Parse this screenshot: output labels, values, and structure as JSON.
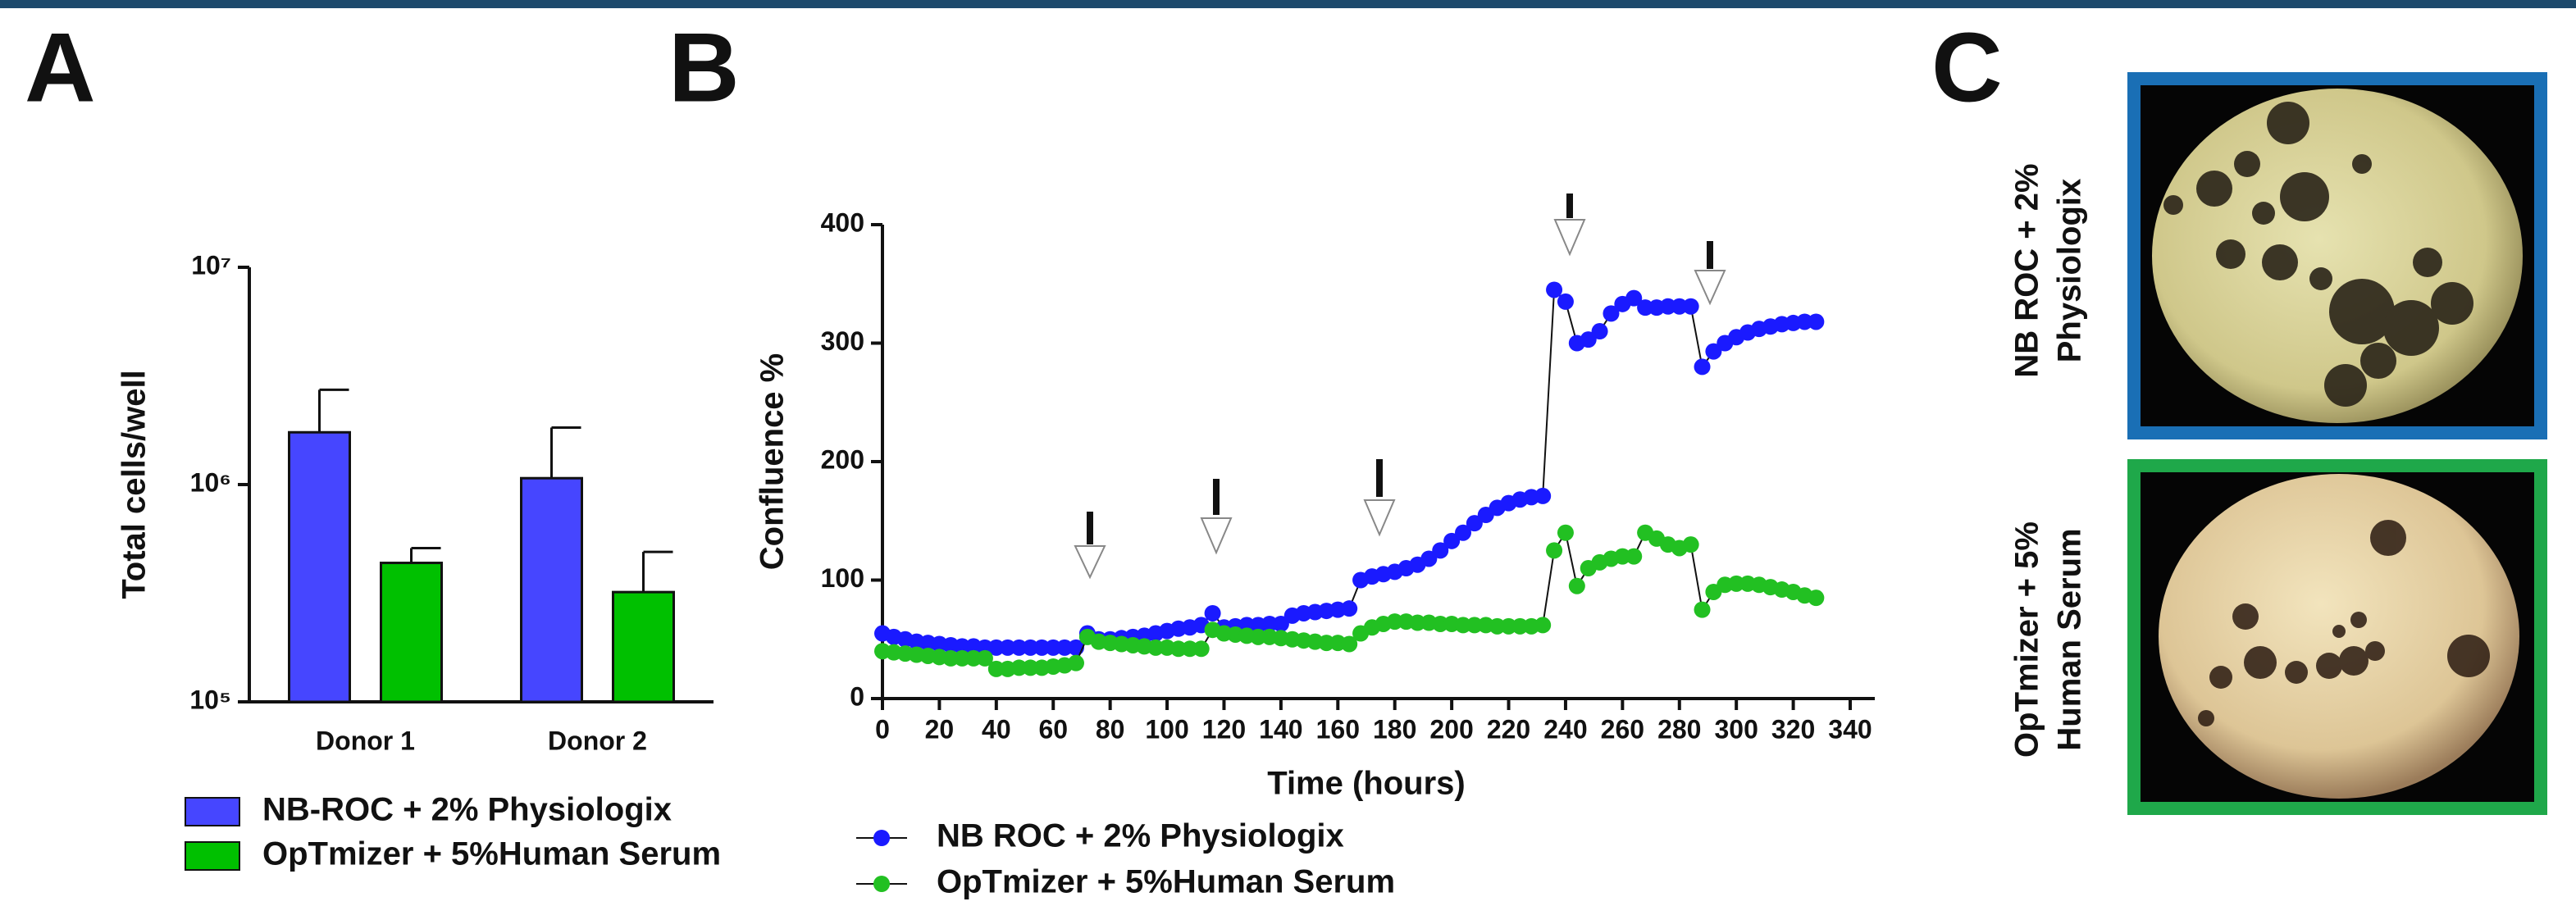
{
  "panel_labels": [
    "A",
    "B",
    "C"
  ],
  "chart_data": [
    {
      "type": "bar",
      "y_label": "Total cells/well",
      "categories": [
        "Donor 1",
        "Donor 2"
      ],
      "series": [
        {
          "name": "NB-ROC + 2% Physiologix",
          "color": "#4646ff",
          "values": [
            1740000,
            1070000
          ],
          "errors": [
            990000,
            760000
          ]
        },
        {
          "name": "OpTmizer + 5%Human Serum",
          "color": "#00c000",
          "values": [
            436000,
            320000
          ],
          "errors": [
            74000,
            170000
          ]
        }
      ],
      "log_y": true,
      "ylim": [
        100000,
        10000000
      ],
      "yticks": [
        {
          "value": 100000,
          "label": "10⁵"
        },
        {
          "value": 1000000,
          "label": "10⁶"
        },
        {
          "value": 10000000,
          "label": "10⁷"
        }
      ]
    },
    {
      "type": "line",
      "x_label": "Time (hours)",
      "y_label": "Confluence %",
      "x": [
        0,
        4,
        8,
        12,
        16,
        20,
        24,
        28,
        32,
        36,
        40,
        44,
        48,
        52,
        56,
        60,
        64,
        68,
        72,
        76,
        80,
        84,
        88,
        92,
        96,
        100,
        104,
        108,
        112,
        116,
        120,
        124,
        128,
        132,
        136,
        140,
        144,
        148,
        152,
        156,
        160,
        164,
        168,
        172,
        176,
        180,
        184,
        188,
        192,
        196,
        200,
        204,
        208,
        212,
        216,
        220,
        224,
        228,
        232,
        236,
        240,
        244,
        248,
        252,
        256,
        260,
        264,
        268,
        272,
        276,
        280,
        284,
        288,
        292,
        296,
        300,
        304,
        308,
        312,
        316,
        320,
        324,
        328
      ],
      "series": [
        {
          "name": "NB ROC + 2% Physiologix",
          "color": "#1a1aff",
          "values": [
            55,
            52,
            50,
            48,
            47,
            46,
            45,
            44,
            44,
            43,
            43,
            43,
            43,
            43,
            43,
            43,
            43,
            43,
            55,
            50,
            50,
            51,
            52,
            53,
            55,
            57,
            59,
            60,
            62,
            72,
            60,
            61,
            62,
            62,
            63,
            63,
            70,
            72,
            73,
            74,
            75,
            76,
            100,
            103,
            105,
            107,
            110,
            113,
            118,
            125,
            133,
            140,
            148,
            155,
            161,
            165,
            168,
            170,
            171,
            345,
            335,
            300,
            303,
            310,
            325,
            333,
            338,
            330,
            330,
            331,
            331,
            331,
            280,
            293,
            300,
            305,
            309,
            312,
            314,
            316,
            317,
            318,
            318
          ]
        },
        {
          "name": "OpTmizer + 5%Human Serum",
          "color": "#22c022",
          "values": [
            40,
            39,
            38,
            37,
            36,
            35,
            34,
            34,
            34,
            34,
            25,
            25,
            26,
            26,
            26,
            27,
            28,
            30,
            52,
            48,
            47,
            46,
            45,
            44,
            43,
            43,
            42,
            42,
            42,
            58,
            55,
            54,
            53,
            52,
            52,
            51,
            50,
            49,
            48,
            47,
            47,
            46,
            55,
            60,
            63,
            65,
            65,
            64,
            64,
            63,
            63,
            62,
            62,
            62,
            61,
            61,
            61,
            61,
            62,
            125,
            140,
            95,
            110,
            115,
            118,
            120,
            120,
            140,
            135,
            130,
            127,
            130,
            75,
            90,
            96,
            97,
            97,
            96,
            94,
            92,
            90,
            87,
            85
          ]
        }
      ],
      "xlim": [
        0,
        340
      ],
      "xticks": [
        0,
        20,
        40,
        60,
        80,
        100,
        120,
        140,
        160,
        180,
        200,
        220,
        240,
        260,
        280,
        300,
        320,
        340
      ],
      "ylim": [
        0,
        400
      ],
      "yticks": [
        0,
        100,
        200,
        300,
        400
      ]
    }
  ],
  "images": [
    {
      "label": [
        "NB ROC + 2%",
        "Physiologix"
      ],
      "border_color": "#1a6fb5"
    },
    {
      "label": [
        "OpTmizer + 5%",
        "Human Serum"
      ],
      "border_color": "#1fa84a"
    }
  ]
}
